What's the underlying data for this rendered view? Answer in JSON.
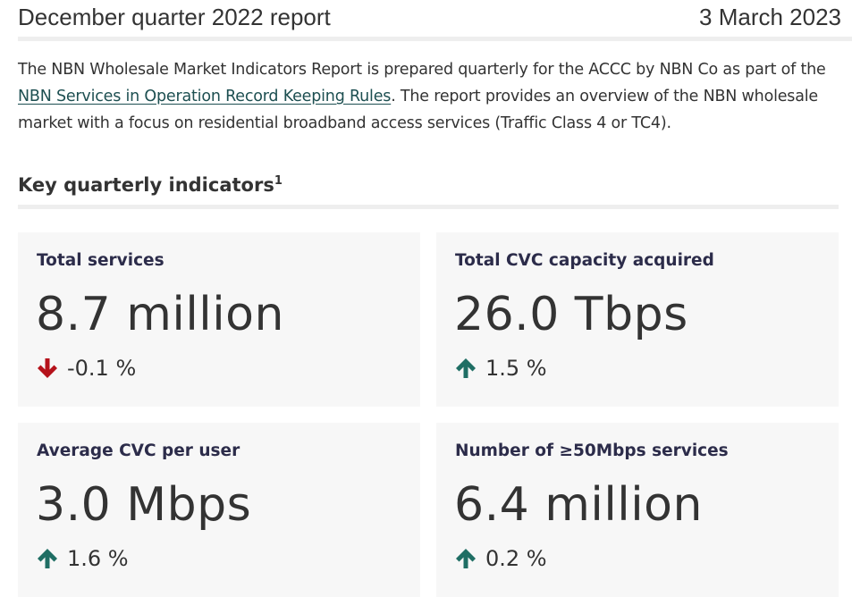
{
  "header": {
    "title": "December quarter 2022 report",
    "date": "3 March 2023"
  },
  "intro": {
    "text_before_link": "The NBN Wholesale Market Indicators Report is prepared quarterly for the ACCC by NBN Co as part of the ",
    "link_text": "NBN Services in Operation Record Keeping Rules",
    "text_after_link": ". The report provides an overview of the NBN wholesale market with a focus on residential broadband access services (Traffic Class 4 or TC4)."
  },
  "section": {
    "title": "Key quarterly indicators",
    "footnote": "1"
  },
  "indicators": [
    {
      "label": "Total services",
      "value": "8.7 million",
      "change": "-0.1 %",
      "direction": "down",
      "icon": "arrow-down-icon",
      "color": "#b5121b"
    },
    {
      "label": "Total CVC capacity acquired",
      "value": "26.0 Tbps",
      "change": "1.5 %",
      "direction": "up",
      "icon": "arrow-up-icon",
      "color": "#1f6e64"
    },
    {
      "label": "Average CVC per user",
      "value": "3.0 Mbps",
      "change": "1.6 %",
      "direction": "up",
      "icon": "arrow-up-icon",
      "color": "#1f6e64"
    },
    {
      "label": "Number of ≥50Mbps services",
      "value": "6.4 million",
      "change": "0.2 %",
      "direction": "up",
      "icon": "arrow-up-icon",
      "color": "#1f6e64"
    }
  ]
}
